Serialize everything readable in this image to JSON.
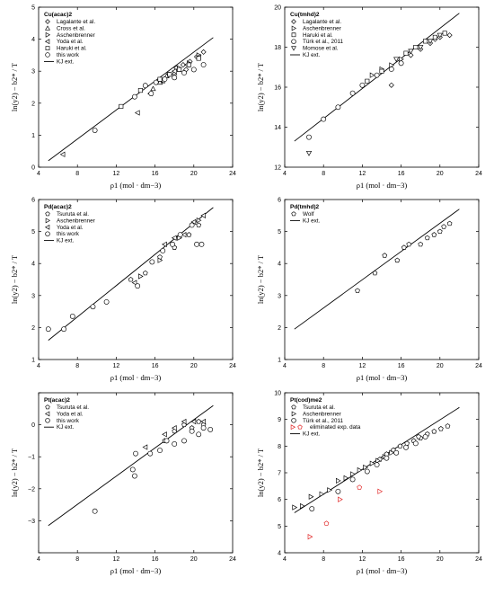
{
  "x_axis_label": "ρ1 (mol · dm−3)",
  "y_axis_label": "ln(y2) − b2* / T",
  "chart_data": [
    {
      "type": "scatter",
      "title": "Cu(acac)2",
      "xlim": [
        4,
        24
      ],
      "ylim": [
        0,
        5
      ],
      "xticks": [
        4,
        8,
        12,
        16,
        20,
        24
      ],
      "yticks": [
        0,
        1,
        2,
        3,
        4,
        5
      ],
      "xtick_labels": [
        "4",
        "8",
        "12",
        "16",
        "20",
        "24"
      ],
      "ytick_labels": [
        "0",
        "1",
        "2",
        "3",
        "4",
        "5"
      ],
      "series": [
        {
          "name": "Lagalante et al.",
          "marker": "diamond",
          "points": [
            [
              16.8,
              2.7
            ],
            [
              17.5,
              2.9
            ],
            [
              18.2,
              3.1
            ],
            [
              18.9,
              3.2
            ],
            [
              19.6,
              3.3
            ],
            [
              20.3,
              3.45
            ],
            [
              21.0,
              3.6
            ],
            [
              19.2,
              3.05
            ]
          ]
        },
        {
          "name": "Cross et al.",
          "marker": "triangle-up",
          "points": [
            [
              15.8,
              2.45
            ],
            [
              16.5,
              2.65
            ],
            [
              17.2,
              2.85
            ],
            [
              18.0,
              2.95
            ]
          ]
        },
        {
          "name": "Aschenbrenner",
          "marker": "triangle-right",
          "points": [
            [
              17.5,
              2.9
            ],
            [
              18.5,
              3.1
            ],
            [
              19.5,
              3.25
            ],
            [
              20.5,
              3.5
            ]
          ]
        },
        {
          "name": "Yoda et al.",
          "marker": "triangle-left",
          "points": [
            [
              6.5,
              0.4
            ],
            [
              14.2,
              1.7
            ],
            [
              15.5,
              2.3
            ],
            [
              16.8,
              2.7
            ],
            [
              18.0,
              3.0
            ],
            [
              19.3,
              3.2
            ],
            [
              20.5,
              3.45
            ]
          ]
        },
        {
          "name": "Haruki et al.",
          "marker": "square",
          "points": [
            [
              12.5,
              1.9
            ],
            [
              14.5,
              2.4
            ],
            [
              16.5,
              2.75
            ],
            [
              17.5,
              2.9
            ],
            [
              18.5,
              3.05
            ],
            [
              19.5,
              3.2
            ],
            [
              20.5,
              3.4
            ]
          ]
        },
        {
          "name": "this work",
          "marker": "circle",
          "points": [
            [
              9.8,
              1.15
            ],
            [
              13.9,
              2.2
            ],
            [
              15.0,
              2.55
            ],
            [
              16.1,
              2.65
            ],
            [
              17.0,
              2.75
            ],
            [
              18.0,
              2.8
            ],
            [
              19.0,
              2.95
            ],
            [
              20.0,
              3.05
            ],
            [
              21.0,
              3.2
            ],
            [
              15.6,
              2.3
            ]
          ]
        }
      ],
      "fit": {
        "name": "KJ ext.",
        "x": [
          5.0,
          22.0
        ],
        "y": [
          0.2,
          4.05
        ]
      }
    },
    {
      "type": "scatter",
      "title": "Cu(tmhd)2",
      "xlim": [
        4,
        24
      ],
      "ylim": [
        12,
        20
      ],
      "xticks": [
        4,
        8,
        12,
        16,
        20,
        24
      ],
      "yticks": [
        12,
        14,
        16,
        18,
        20
      ],
      "xtick_labels": [
        "4",
        "8",
        "12",
        "16",
        "20",
        "24"
      ],
      "ytick_labels": [
        "12",
        "14",
        "16",
        "18",
        "20"
      ],
      "series": [
        {
          "name": "Lagalante et al.",
          "marker": "diamond",
          "points": [
            [
              15.0,
              16.1
            ],
            [
              16.0,
              17.2
            ],
            [
              17.0,
              17.6
            ],
            [
              18.0,
              17.9
            ],
            [
              19.0,
              18.2
            ],
            [
              20.0,
              18.5
            ],
            [
              21.0,
              18.6
            ],
            [
              19.5,
              18.4
            ]
          ]
        },
        {
          "name": "Aschenbrenner",
          "marker": "triangle-right",
          "points": [
            [
              13.0,
              16.6
            ],
            [
              14.0,
              16.9
            ],
            [
              15.0,
              17.1
            ],
            [
              16.0,
              17.4
            ]
          ]
        },
        {
          "name": "Haruki et al.",
          "marker": "square",
          "points": [
            [
              12.5,
              16.3
            ],
            [
              14.0,
              16.8
            ],
            [
              16.5,
              17.7
            ],
            [
              17.5,
              18.0
            ],
            [
              18.5,
              18.3
            ],
            [
              19.5,
              18.5
            ],
            [
              20.5,
              18.7
            ]
          ]
        },
        {
          "name": "Türk et al., 2011",
          "marker": "circle",
          "points": [
            [
              6.5,
              13.5
            ],
            [
              8.0,
              14.4
            ],
            [
              9.5,
              15.0
            ],
            [
              11.0,
              15.7
            ],
            [
              12.0,
              16.1
            ],
            [
              13.5,
              16.6
            ],
            [
              15.0,
              16.9
            ],
            [
              16.0,
              17.2
            ]
          ]
        },
        {
          "name": "Momose et al.",
          "marker": "triangle-down",
          "points": [
            [
              6.5,
              12.7
            ],
            [
              15.5,
              17.4
            ],
            [
              17.0,
              17.8
            ],
            [
              18.0,
              18.0
            ],
            [
              19.0,
              18.3
            ],
            [
              20.0,
              18.6
            ]
          ]
        }
      ],
      "fit": {
        "name": "KJ ext.",
        "x": [
          5.0,
          22.0
        ],
        "y": [
          13.3,
          19.7
        ]
      }
    },
    {
      "type": "scatter",
      "title": "Pd(acac)2",
      "xlim": [
        4,
        24
      ],
      "ylim": [
        1,
        6
      ],
      "xticks": [
        4,
        8,
        12,
        16,
        20,
        24
      ],
      "yticks": [
        1,
        2,
        3,
        4,
        5,
        6
      ],
      "xtick_labels": [
        "4",
        "8",
        "12",
        "16",
        "20",
        "24"
      ],
      "ytick_labels": [
        "1",
        "2",
        "3",
        "4",
        "5",
        "6"
      ],
      "series": [
        {
          "name": "Tsuruta et al.",
          "marker": "pentagon",
          "points": [
            [
              13.5,
              3.5
            ],
            [
              15.0,
              3.7
            ],
            [
              16.5,
              4.2
            ],
            [
              18.0,
              4.5
            ],
            [
              19.5,
              4.9
            ],
            [
              20.5,
              5.2
            ]
          ]
        },
        {
          "name": "Aschenbrenner",
          "marker": "triangle-right",
          "points": [
            [
              14.5,
              3.6
            ],
            [
              16.5,
              4.1
            ],
            [
              18.5,
              4.8
            ],
            [
              20.5,
              5.35
            ]
          ]
        },
        {
          "name": "Yoda et al.",
          "marker": "triangle-left",
          "points": [
            [
              13.9,
              3.4
            ],
            [
              17.0,
              4.6
            ],
            [
              18.0,
              4.8
            ],
            [
              19.0,
              4.9
            ],
            [
              20.0,
              5.3
            ],
            [
              21.0,
              5.5
            ]
          ]
        },
        {
          "name": "this work",
          "marker": "circle",
          "points": [
            [
              5.0,
              1.95
            ],
            [
              6.6,
              1.95
            ],
            [
              7.5,
              2.35
            ],
            [
              9.6,
              2.65
            ],
            [
              11.0,
              2.8
            ],
            [
              14.2,
              3.3
            ],
            [
              15.7,
              4.05
            ],
            [
              16.8,
              4.4
            ],
            [
              17.8,
              4.6
            ],
            [
              18.6,
              4.9
            ],
            [
              19.8,
              5.2
            ],
            [
              20.3,
              4.6
            ],
            [
              20.8,
              4.6
            ]
          ]
        }
      ],
      "fit": {
        "name": "KJ ext.",
        "x": [
          5.0,
          22.0
        ],
        "y": [
          1.6,
          5.75
        ]
      }
    },
    {
      "type": "scatter",
      "title": "Pd(tmhd)2",
      "xlim": [
        4,
        24
      ],
      "ylim": [
        1,
        6
      ],
      "xticks": [
        4,
        8,
        12,
        16,
        20,
        24
      ],
      "yticks": [
        1,
        2,
        3,
        4,
        5,
        6
      ],
      "xtick_labels": [
        "4",
        "8",
        "12",
        "16",
        "20",
        "24"
      ],
      "ytick_labels": [
        "1",
        "2",
        "3",
        "4",
        "5",
        "6"
      ],
      "series": [
        {
          "name": "Wolf",
          "marker": "pentagon",
          "points": [
            [
              11.5,
              3.15
            ],
            [
              13.3,
              3.7
            ],
            [
              14.3,
              4.25
            ],
            [
              15.6,
              4.1
            ],
            [
              16.3,
              4.5
            ],
            [
              16.8,
              4.6
            ],
            [
              18.0,
              4.6
            ],
            [
              18.7,
              4.8
            ],
            [
              19.4,
              4.9
            ],
            [
              20.0,
              5.0
            ],
            [
              20.4,
              5.15
            ],
            [
              21.0,
              5.25
            ]
          ]
        }
      ],
      "fit": {
        "name": "KJ ext.",
        "x": [
          5.0,
          22.0
        ],
        "y": [
          1.95,
          5.7
        ]
      }
    },
    {
      "type": "scatter",
      "title": "Pt(acac)2",
      "xlim": [
        4,
        24
      ],
      "ylim": [
        -4,
        1
      ],
      "xticks": [
        4,
        8,
        12,
        16,
        20,
        24
      ],
      "yticks": [
        -4,
        -3,
        -2,
        -1,
        0,
        1
      ],
      "xtick_labels": [
        "4",
        "8",
        "12",
        "16",
        "20",
        "24"
      ],
      "ytick_labels": [
        "",
        "−3",
        "−2",
        "−1",
        "0",
        ""
      ],
      "series": [
        {
          "name": "Tsuruta et al.",
          "marker": "pentagon",
          "points": [
            [
              17.0,
              -0.5
            ],
            [
              18.0,
              -0.2
            ],
            [
              19.0,
              0.0
            ],
            [
              19.8,
              -0.1
            ],
            [
              20.5,
              0.1
            ],
            [
              21.0,
              0.0
            ]
          ]
        },
        {
          "name": "Yoda et al.",
          "marker": "triangle-left",
          "points": [
            [
              15.0,
              -0.7
            ],
            [
              17.0,
              -0.3
            ],
            [
              18.0,
              -0.1
            ],
            [
              19.0,
              0.1
            ],
            [
              20.0,
              0.1
            ],
            [
              21.0,
              0.1
            ]
          ]
        },
        {
          "name": "this work",
          "marker": "circle",
          "points": [
            [
              9.8,
              -2.7
            ],
            [
              13.7,
              -1.4
            ],
            [
              13.9,
              -1.6
            ],
            [
              14.0,
              -0.9
            ],
            [
              15.5,
              -0.9
            ],
            [
              16.5,
              -0.8
            ],
            [
              17.2,
              -0.5
            ],
            [
              18.0,
              -0.6
            ],
            [
              19.0,
              -0.5
            ],
            [
              19.8,
              -0.2
            ],
            [
              20.5,
              -0.3
            ],
            [
              21.0,
              -0.1
            ],
            [
              21.7,
              -0.15
            ]
          ]
        }
      ],
      "fit": {
        "name": "KJ ext.",
        "x": [
          5.0,
          22.0
        ],
        "y": [
          -3.15,
          0.6
        ]
      }
    },
    {
      "type": "scatter",
      "title": "Pt(cod)me2",
      "xlim": [
        4,
        24
      ],
      "ylim": [
        4,
        10
      ],
      "xticks": [
        4,
        8,
        12,
        16,
        20,
        24
      ],
      "yticks": [
        4,
        5,
        6,
        7,
        8,
        9,
        10
      ],
      "xtick_labels": [
        "4",
        "8",
        "12",
        "16",
        "20",
        "24"
      ],
      "ytick_labels": [
        "4",
        "5",
        "6",
        "7",
        "8",
        "9",
        "10"
      ],
      "series": [
        {
          "name": "Tsuruta et al.",
          "marker": "pentagon",
          "points": [
            [
              13.8,
              7.5
            ],
            [
              14.5,
              7.7
            ],
            [
              15.2,
              7.85
            ],
            [
              15.9,
              8.0
            ],
            [
              16.6,
              8.1
            ],
            [
              17.3,
              8.2
            ],
            [
              18.0,
              8.3
            ],
            [
              18.7,
              8.45
            ],
            [
              19.4,
              8.55
            ],
            [
              20.1,
              8.65
            ],
            [
              20.8,
              8.75
            ],
            [
              17.8,
              8.35
            ]
          ]
        },
        {
          "name": "Aschenbrenner",
          "marker": "triangle-right",
          "points": [
            [
              5.0,
              5.7
            ],
            [
              5.8,
              5.75
            ],
            [
              6.7,
              6.1
            ],
            [
              7.8,
              6.2
            ],
            [
              8.6,
              6.35
            ],
            [
              9.5,
              6.7
            ],
            [
              10.3,
              6.8
            ],
            [
              11.0,
              6.95
            ],
            [
              11.7,
              7.1
            ],
            [
              12.3,
              7.2
            ],
            [
              13.0,
              7.35
            ],
            [
              13.6,
              7.45
            ],
            [
              14.3,
              7.6
            ],
            [
              15.0,
              7.75
            ]
          ]
        },
        {
          "name": "Türk et al., 2011",
          "marker": "circle",
          "points": [
            [
              6.8,
              5.65
            ],
            [
              9.5,
              6.3
            ],
            [
              11.0,
              6.75
            ],
            [
              12.5,
              7.05
            ],
            [
              13.5,
              7.3
            ],
            [
              14.5,
              7.55
            ],
            [
              15.5,
              7.75
            ],
            [
              16.5,
              7.95
            ],
            [
              17.5,
              8.1
            ],
            [
              18.5,
              8.35
            ]
          ]
        },
        {
          "name": "eliminated exp. data",
          "marker": "mixed-red",
          "points": [
            [
              6.6,
              4.6
            ],
            [
              8.3,
              5.1
            ],
            [
              9.7,
              6.0
            ],
            [
              11.7,
              6.45
            ],
            [
              13.8,
              6.3
            ]
          ]
        }
      ],
      "fit": {
        "name": "KJ ext.",
        "x": [
          5.0,
          22.0
        ],
        "y": [
          5.5,
          9.45
        ]
      }
    }
  ]
}
